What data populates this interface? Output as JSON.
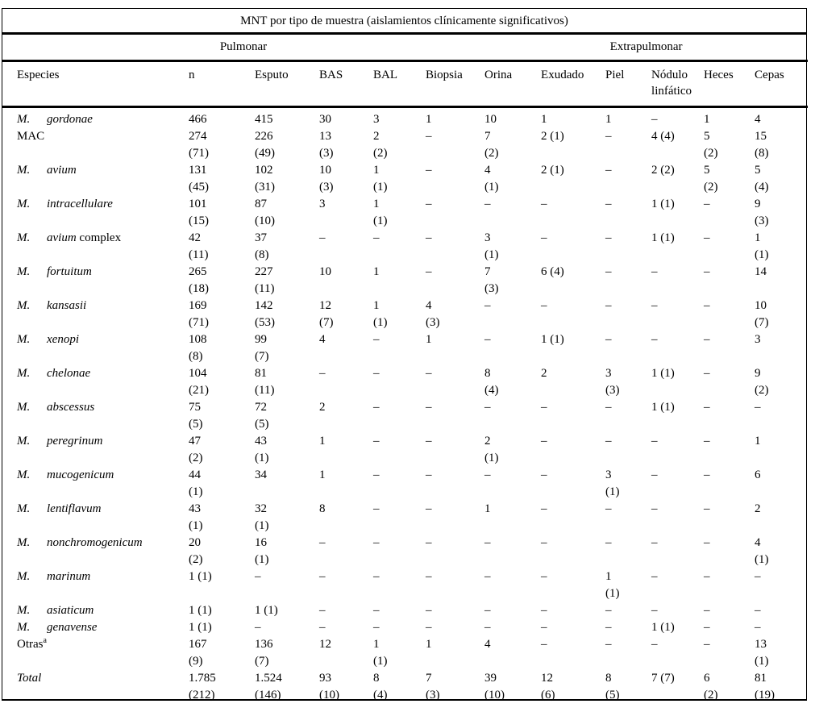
{
  "table": {
    "title": "MNT por tipo de muestra (aislamientos clínicamente significativos)",
    "groups": [
      {
        "label": "Pulmonar"
      },
      {
        "label": "Extrapulmonar"
      }
    ],
    "columns": [
      "Especies",
      "n",
      "Esputo",
      "BAS",
      "BAL",
      "Biopsia",
      "Orina",
      "Exudado",
      "Piel",
      "Nódulo linfático",
      "Heces",
      "Cepas"
    ],
    "dash": "–",
    "rows": [
      {
        "species": {
          "prefix": "M.",
          "name": "gordonae",
          "suffix": "",
          "sup": "",
          "italic": true
        },
        "cells": [
          "466",
          "415",
          "30",
          "3",
          "1",
          "10",
          "1",
          "1",
          "–",
          "1",
          "4"
        ]
      },
      {
        "species": {
          "prefix": "",
          "name": "MAC",
          "suffix": "",
          "sup": "",
          "italic": false
        },
        "cells": [
          "274\n(71)",
          "226\n(49)",
          "13\n(3)",
          "2\n(2)",
          "–",
          "7\n(2)",
          "2 (1)",
          "–",
          "4 (4)",
          "5\n(2)",
          "15\n(8)"
        ]
      },
      {
        "species": {
          "prefix": "M.",
          "name": "avium",
          "suffix": "",
          "sup": "",
          "italic": true
        },
        "cells": [
          "131\n(45)",
          "102\n(31)",
          "10\n(3)",
          "1\n(1)",
          "–",
          "4\n(1)",
          "2 (1)",
          "–",
          "2 (2)",
          "5\n(2)",
          "5\n(4)"
        ]
      },
      {
        "species": {
          "prefix": "M.",
          "name": "intracellulare",
          "suffix": "",
          "sup": "",
          "italic": true
        },
        "cells": [
          "101\n(15)",
          "87\n(10)",
          "3",
          "1\n(1)",
          "–",
          "–",
          "–",
          "–",
          "1 (1)",
          "–",
          "9\n(3)"
        ]
      },
      {
        "species": {
          "prefix": "M.",
          "name": "avium",
          "suffix": " complex",
          "sup": "",
          "italic": true
        },
        "cells": [
          "42\n(11)",
          "37\n(8)",
          "–",
          "–",
          "–",
          "3\n(1)",
          "–",
          "–",
          "1 (1)",
          "–",
          "1\n(1)"
        ]
      },
      {
        "species": {
          "prefix": "M.",
          "name": "fortuitum",
          "suffix": "",
          "sup": "",
          "italic": true
        },
        "cells": [
          "265\n(18)",
          "227\n(11)",
          "10",
          "1",
          "–",
          "7\n(3)",
          "6 (4)",
          "–",
          "–",
          "–",
          "14"
        ]
      },
      {
        "species": {
          "prefix": "M.",
          "name": "kansasii",
          "suffix": "",
          "sup": "",
          "italic": true
        },
        "cells": [
          "169\n(71)",
          "142\n(53)",
          "12\n(7)",
          "1\n(1)",
          "4\n(3)",
          "–",
          "–",
          "–",
          "–",
          "–",
          "10\n(7)"
        ]
      },
      {
        "species": {
          "prefix": "M.",
          "name": "xenopi",
          "suffix": "",
          "sup": "",
          "italic": true
        },
        "cells": [
          "108\n(8)",
          "99\n(7)",
          "4",
          "–",
          "1",
          "–",
          "1 (1)",
          "–",
          "–",
          "–",
          "3"
        ]
      },
      {
        "species": {
          "prefix": "M.",
          "name": "chelonae",
          "suffix": "",
          "sup": "",
          "italic": true
        },
        "cells": [
          "104\n(21)",
          "81\n(11)",
          "–",
          "–",
          "–",
          "8\n(4)",
          "2",
          "3\n(3)",
          "1 (1)",
          "–",
          "9\n(2)"
        ]
      },
      {
        "species": {
          "prefix": "M.",
          "name": "abscessus",
          "suffix": "",
          "sup": "",
          "italic": true
        },
        "cells": [
          "75\n(5)",
          "72\n(5)",
          "2",
          "–",
          "–",
          "–",
          "–",
          "–",
          "1 (1)",
          "–",
          "–"
        ]
      },
      {
        "species": {
          "prefix": "M.",
          "name": "peregrinum",
          "suffix": "",
          "sup": "",
          "italic": true
        },
        "cells": [
          "47\n(2)",
          "43\n(1)",
          "1",
          "–",
          "–",
          "2\n(1)",
          "–",
          "–",
          "–",
          "–",
          "1"
        ]
      },
      {
        "species": {
          "prefix": "M.",
          "name": "mucogenicum",
          "suffix": "",
          "sup": "",
          "italic": true
        },
        "cells": [
          "44\n(1)",
          "34",
          "1",
          "–",
          "–",
          "–",
          "–",
          "3\n(1)",
          "–",
          "–",
          "6"
        ]
      },
      {
        "species": {
          "prefix": "M.",
          "name": "lentiflavum",
          "suffix": "",
          "sup": "",
          "italic": true
        },
        "cells": [
          "43\n(1)",
          "32\n(1)",
          "8",
          "–",
          "–",
          "1",
          "–",
          "–",
          "–",
          "–",
          "2"
        ]
      },
      {
        "species": {
          "prefix": "M.",
          "name": "nonchromogenicum",
          "suffix": "",
          "sup": "",
          "italic": true
        },
        "cells": [
          "20\n(2)",
          "16\n(1)",
          "–",
          "–",
          "–",
          "–",
          "–",
          "–",
          "–",
          "–",
          "4\n(1)"
        ]
      },
      {
        "species": {
          "prefix": "M.",
          "name": "marinum",
          "suffix": "",
          "sup": "",
          "italic": true
        },
        "cells": [
          "1 (1)",
          "–",
          "–",
          "–",
          "–",
          "–",
          "–",
          "1\n(1)",
          "–",
          "–",
          "–"
        ]
      },
      {
        "species": {
          "prefix": "M.",
          "name": "asiaticum",
          "suffix": "",
          "sup": "",
          "italic": true
        },
        "cells": [
          "1 (1)",
          "1 (1)",
          "–",
          "–",
          "–",
          "–",
          "–",
          "–",
          "–",
          "–",
          "–"
        ]
      },
      {
        "species": {
          "prefix": "M.",
          "name": "genavense",
          "suffix": "",
          "sup": "",
          "italic": true
        },
        "cells": [
          "1 (1)",
          "–",
          "–",
          "–",
          "–",
          "–",
          "–",
          "–",
          "1 (1)",
          "–",
          "–"
        ]
      },
      {
        "species": {
          "prefix": "",
          "name": "Otras",
          "suffix": "",
          "sup": "a",
          "italic": false
        },
        "cells": [
          "167\n(9)",
          "136\n(7)",
          "12",
          "1\n(1)",
          "1",
          "4",
          "–",
          "–",
          "–",
          "–",
          "13\n(1)"
        ]
      },
      {
        "species": {
          "prefix": "",
          "name": "Total",
          "suffix": "",
          "sup": "",
          "italic": true
        },
        "cells": [
          "1.785\n(212)",
          "1.524\n(146)",
          "93\n(10)",
          "8\n(4)",
          "7\n(3)",
          "39\n(10)",
          "12\n(6)",
          "8\n(5)",
          "7 (7)",
          "6\n(2)",
          "81\n(19)"
        ]
      }
    ]
  }
}
